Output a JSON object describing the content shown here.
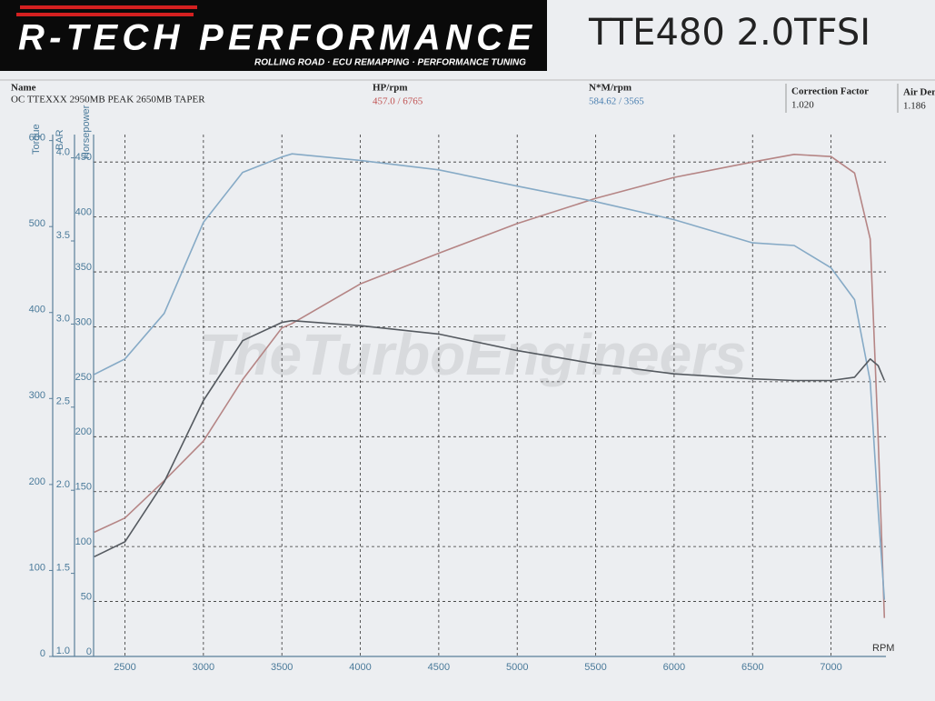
{
  "header": {
    "logo": "R-TECH PERFORMANCE",
    "tagline": "ROLLING ROAD · ECU REMAPPING · PERFORMANCE TUNING",
    "title": "TTE480 2.0TFSI",
    "fields": [
      {
        "label": "Name",
        "value": "OC TTEXXX 2950MB PEAK 2650MB TAPER"
      },
      {
        "label": "HP/rpm",
        "value": "457.0 / 6765"
      },
      {
        "label": "N*M/rpm",
        "value": "584.62 / 3565"
      },
      {
        "label": "Correction Factor",
        "value": "1.020"
      },
      {
        "label": "Air Den",
        "value": "1.186"
      }
    ]
  },
  "chart_data": {
    "type": "line",
    "watermark": "TheTurboEngineers",
    "x_label": "RPM",
    "y_label": "Horsepower",
    "y2_label": "Torque",
    "y3_label": "BAR",
    "x": [
      2304,
      2500,
      2750,
      3000,
      3250,
      3500,
      3565,
      4000,
      4500,
      5000,
      5500,
      6000,
      6500,
      6765,
      7000,
      7150,
      7250,
      7300,
      7340
    ],
    "series": [
      {
        "color": "#b58585",
        "values": [
          113,
          126,
          160,
          196,
          252,
          299,
          303,
          339,
          367,
          394,
          417,
          436,
          450,
          457,
          455,
          440,
          380,
          200,
          35
        ]
      },
      {
        "color": "#86aac6",
        "axis": "y2",
        "values": [
          328,
          346,
          399,
          505,
          563,
          581,
          584.62,
          577,
          566,
          547,
          529,
          508,
          481,
          478,
          452,
          415,
          320,
          171,
          66
        ]
      },
      {
        "color": "#555a60",
        "axis": "y3",
        "values": [
          1.6,
          1.69,
          2.05,
          2.54,
          2.9,
          3.01,
          3.02,
          2.99,
          2.94,
          2.84,
          2.76,
          2.7,
          2.67,
          2.66,
          2.66,
          2.68,
          2.79,
          2.75,
          2.66
        ]
      }
    ],
    "xlim": [
      2300,
      7350
    ],
    "xticks": [
      2500,
      3000,
      3500,
      4000,
      4500,
      5000,
      5500,
      6000,
      6500,
      7000
    ],
    "ylim": [
      0,
      475
    ],
    "yticks": [
      0,
      50,
      100,
      150,
      200,
      250,
      300,
      350,
      400,
      450
    ],
    "y2lim": [
      0,
      607
    ],
    "y2ticks": [
      0,
      100,
      200,
      300,
      400,
      500,
      600
    ],
    "y3lim": [
      1.0,
      4.14
    ],
    "y3ticks": [
      {
        "value": 1,
        "label": "1.0"
      },
      1.5,
      {
        "value": 2,
        "label": "2.0"
      },
      2.5,
      {
        "value": 3,
        "label": "3.0"
      },
      3.5,
      {
        "value": 4,
        "label": "4.0"
      }
    ],
    "grid": true
  }
}
